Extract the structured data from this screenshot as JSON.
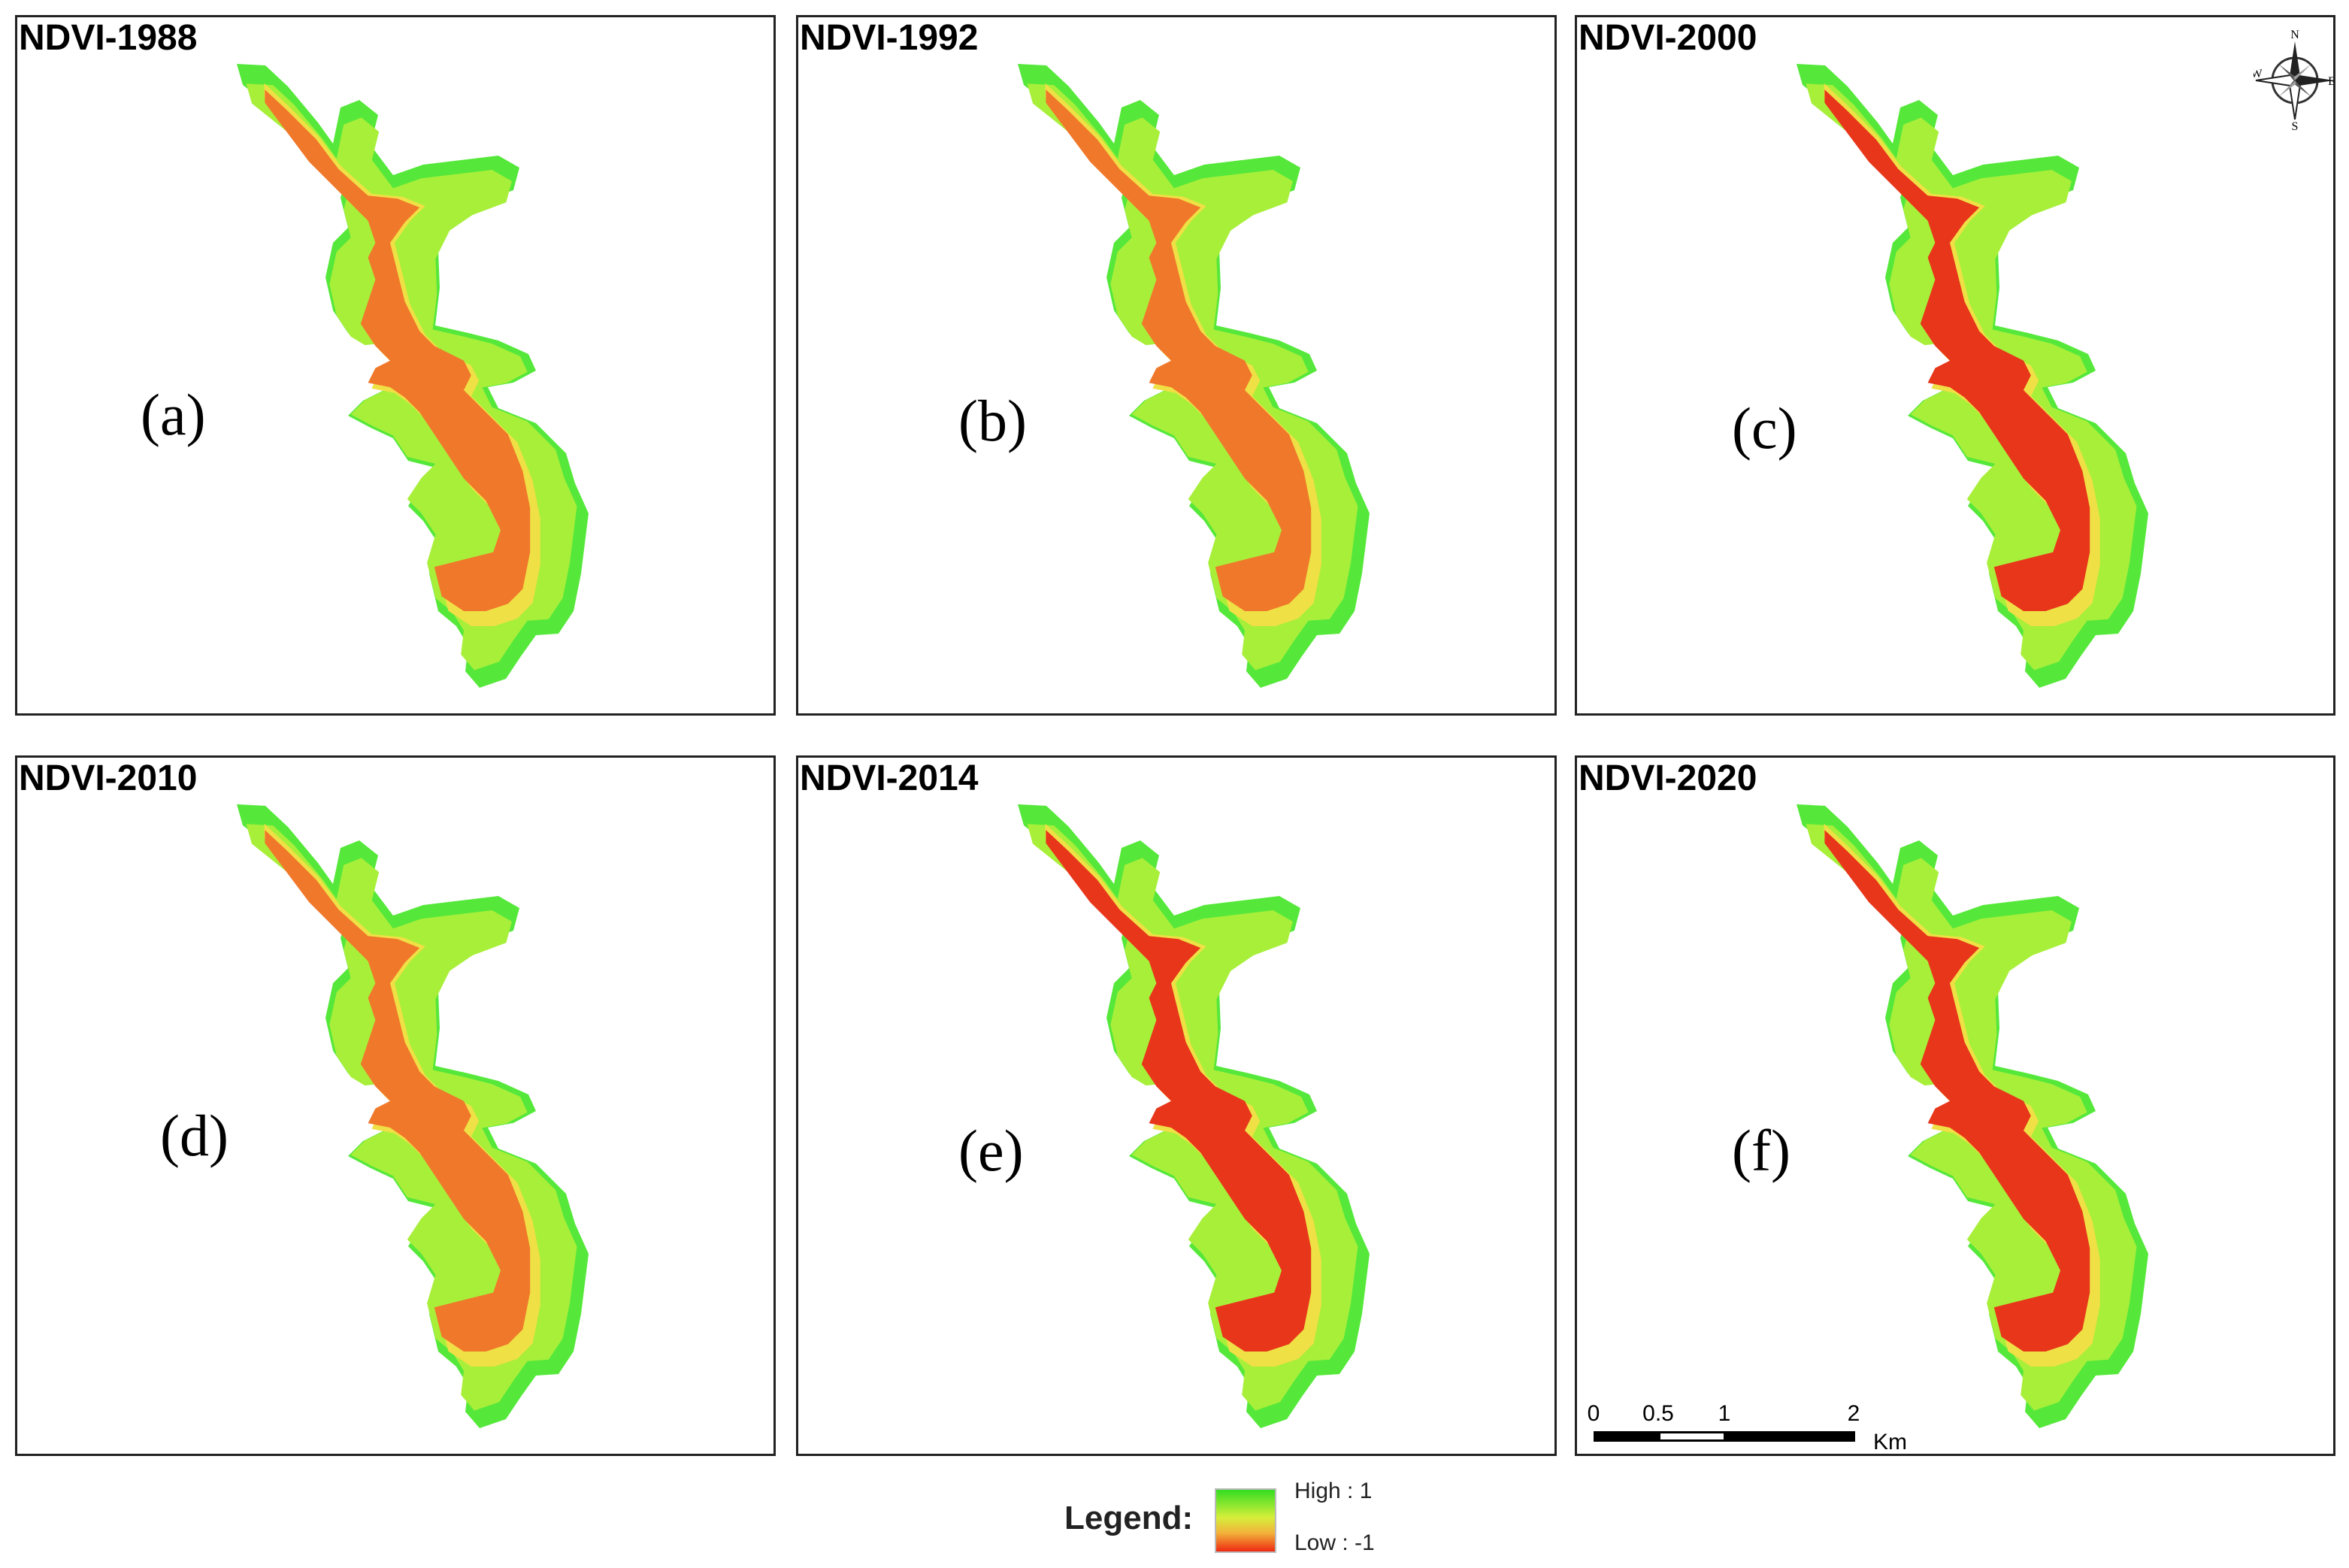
{
  "panels": [
    {
      "title": "NDVI-1988",
      "letter": "(a)"
    },
    {
      "title": "NDVI-1992",
      "letter": "(b)"
    },
    {
      "title": "NDVI-2000",
      "letter": "(c)"
    },
    {
      "title": "NDVI-2010",
      "letter": "(d)"
    },
    {
      "title": "NDVI-2014",
      "letter": "(e)"
    },
    {
      "title": "NDVI-2020",
      "letter": "(f)"
    }
  ],
  "legend": {
    "title": "Legend:",
    "high_label": "High : 1",
    "low_label": "Low : -1",
    "high_color": "#33dd22",
    "low_color": "#ee2a12"
  },
  "scale_bar": {
    "labels": [
      "0",
      "0.5",
      "1",
      "2"
    ],
    "unit": "Km"
  },
  "compass": {
    "n": "N",
    "s": "S",
    "e": "E",
    "w": "W"
  },
  "colors": {
    "outer_green": "#55e83a",
    "inner_green": "#a8ef3a",
    "yellow": "#efe045",
    "orange": "#f0782a",
    "red": "#e8361a"
  }
}
